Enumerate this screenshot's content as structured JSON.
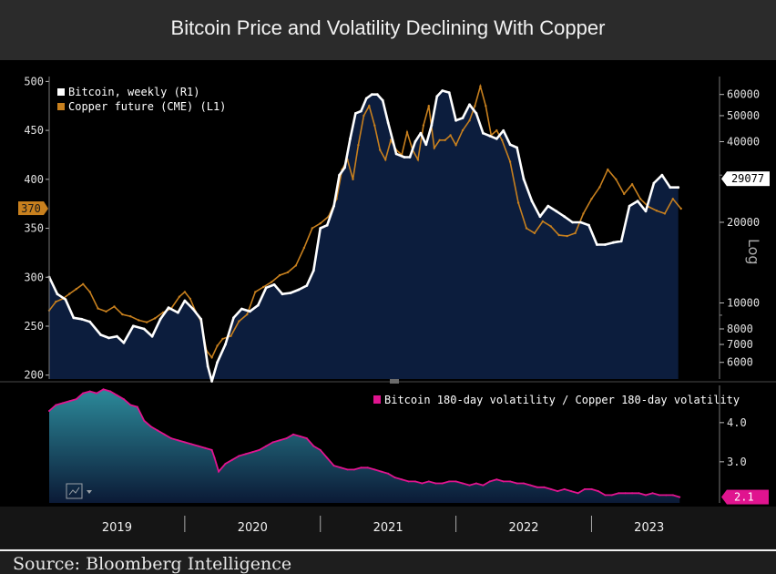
{
  "title": "Bitcoin Price and Volatility Declining With Copper",
  "source": "Source: Bloomberg Intelligence",
  "chart_data": [
    {
      "type": "line",
      "panel": "top",
      "x_axis": {
        "labels": [
          "2019",
          "2020",
          "2021",
          "2022",
          "2023"
        ],
        "range": [
          2019.0,
          2023.85
        ]
      },
      "left_axis": {
        "ticks": [
          500,
          450,
          400,
          350,
          300,
          250,
          200
        ],
        "range": [
          196,
          505
        ],
        "current_label": "370"
      },
      "right_axis": {
        "scale": "log",
        "ticks": [
          60000,
          50000,
          40000,
          20000,
          10000,
          8000,
          7000,
          6000
        ],
        "tick_labels": [
          "60000",
          "50000",
          "40000",
          "20000",
          "10000",
          "8000",
          "7000",
          "6000"
        ],
        "range": [
          5200,
          70000
        ],
        "unit_label": "Log",
        "current_label": "29077"
      },
      "series": [
        {
          "name": "Bitcoin, weekly (R1)",
          "axis": "right",
          "color": "#ffffff",
          "x": [
            2019.0,
            2019.06,
            2019.12,
            2019.18,
            2019.24,
            2019.3,
            2019.38,
            2019.44,
            2019.5,
            2019.55,
            2019.62,
            2019.7,
            2019.76,
            2019.82,
            2019.88,
            2019.95,
            2020.0,
            2020.06,
            2020.12,
            2020.17,
            2020.2,
            2020.24,
            2020.3,
            2020.36,
            2020.42,
            2020.48,
            2020.54,
            2020.6,
            2020.66,
            2020.72,
            2020.78,
            2020.84,
            2020.9,
            2020.95,
            2021.0,
            2021.05,
            2021.1,
            2021.14,
            2021.18,
            2021.22,
            2021.26,
            2021.3,
            2021.34,
            2021.38,
            2021.42,
            2021.46,
            2021.5,
            2021.56,
            2021.62,
            2021.66,
            2021.7,
            2021.74,
            2021.78,
            2021.82,
            2021.86,
            2021.9,
            2021.95,
            2022.0,
            2022.05,
            2022.1,
            2022.15,
            2022.2,
            2022.25,
            2022.3,
            2022.35,
            2022.4,
            2022.45,
            2022.5,
            2022.56,
            2022.62,
            2022.68,
            2022.74,
            2022.8,
            2022.86,
            2022.92,
            2022.98,
            2023.04,
            2023.1,
            2023.16,
            2023.22,
            2023.28,
            2023.34,
            2023.4,
            2023.46,
            2023.52,
            2023.58,
            2023.64
          ],
          "values": [
            12500,
            10800,
            10300,
            8800,
            8700,
            8500,
            7600,
            7400,
            7500,
            7100,
            8200,
            8000,
            7500,
            8700,
            9600,
            9200,
            10200,
            9500,
            8700,
            5800,
            5100,
            6000,
            7000,
            8800,
            9500,
            9300,
            9800,
            11400,
            11700,
            10800,
            10900,
            11200,
            11600,
            13200,
            19000,
            19500,
            23000,
            30000,
            32000,
            41000,
            51000,
            52000,
            58000,
            60000,
            60000,
            57000,
            47000,
            36000,
            35000,
            35000,
            40000,
            43000,
            39000,
            46000,
            59000,
            62000,
            61000,
            48000,
            49000,
            55000,
            51000,
            43000,
            42000,
            41000,
            44000,
            39000,
            38000,
            29000,
            24000,
            21000,
            23000,
            22000,
            21000,
            20000,
            20000,
            19500,
            16500,
            16500,
            16800,
            17000,
            23000,
            24000,
            22000,
            28000,
            30000,
            27000,
            27000
          ]
        },
        {
          "name": "Copper future (CME) (L1)",
          "axis": "left",
          "color": "#c8801e",
          "x": [
            2019.0,
            2019.05,
            2019.1,
            2019.15,
            2019.2,
            2019.25,
            2019.3,
            2019.36,
            2019.42,
            2019.48,
            2019.54,
            2019.6,
            2019.66,
            2019.72,
            2019.78,
            2019.84,
            2019.9,
            2019.96,
            2020.0,
            2020.04,
            2020.08,
            2020.12,
            2020.16,
            2020.2,
            2020.24,
            2020.28,
            2020.34,
            2020.4,
            2020.46,
            2020.52,
            2020.58,
            2020.64,
            2020.7,
            2020.76,
            2020.82,
            2020.88,
            2020.94,
            2021.0,
            2021.06,
            2021.12,
            2021.16,
            2021.2,
            2021.24,
            2021.28,
            2021.32,
            2021.36,
            2021.4,
            2021.44,
            2021.48,
            2021.52,
            2021.56,
            2021.6,
            2021.64,
            2021.68,
            2021.72,
            2021.76,
            2021.8,
            2021.84,
            2021.88,
            2021.92,
            2021.96,
            2022.0,
            2022.05,
            2022.1,
            2022.14,
            2022.18,
            2022.22,
            2022.26,
            2022.3,
            2022.34,
            2022.4,
            2022.46,
            2022.52,
            2022.58,
            2022.64,
            2022.7,
            2022.76,
            2022.82,
            2022.88,
            2022.94,
            2023.0,
            2023.06,
            2023.12,
            2023.18,
            2023.24,
            2023.3,
            2023.36,
            2023.42,
            2023.48,
            2023.54,
            2023.6,
            2023.66
          ],
          "values": [
            266,
            275,
            278,
            283,
            288,
            293,
            285,
            268,
            265,
            270,
            262,
            260,
            256,
            254,
            258,
            264,
            268,
            280,
            285,
            278,
            265,
            255,
            225,
            218,
            230,
            237,
            240,
            255,
            262,
            285,
            290,
            295,
            302,
            305,
            312,
            330,
            350,
            355,
            362,
            380,
            410,
            420,
            400,
            435,
            465,
            475,
            455,
            430,
            420,
            440,
            430,
            425,
            448,
            430,
            420,
            455,
            475,
            432,
            440,
            440,
            445,
            435,
            450,
            460,
            475,
            495,
            475,
            445,
            450,
            440,
            418,
            376,
            350,
            345,
            357,
            352,
            343,
            342,
            345,
            365,
            380,
            392,
            410,
            400,
            385,
            395,
            380,
            372,
            368,
            365,
            380,
            370
          ]
        }
      ]
    },
    {
      "type": "area",
      "panel": "bottom",
      "legend": "Bitcoin 180-day volatility / Copper 180-day volatility",
      "right_axis": {
        "ticks": [
          4.0,
          3.0
        ],
        "tick_labels": [
          "4.0",
          "3.0"
        ],
        "range": [
          1.95,
          4.95
        ],
        "current_label": "2.1"
      },
      "series": [
        {
          "name": "Bitcoin 180-day volatility / Copper 180-day volatility",
          "color": "#e0148f",
          "x": [
            2019.0,
            2019.05,
            2019.1,
            2019.15,
            2019.2,
            2019.25,
            2019.3,
            2019.35,
            2019.4,
            2019.45,
            2019.5,
            2019.55,
            2019.6,
            2019.65,
            2019.7,
            2019.75,
            2019.8,
            2019.85,
            2019.9,
            2019.95,
            2020.0,
            2020.05,
            2020.1,
            2020.15,
            2020.2,
            2020.22,
            2020.25,
            2020.3,
            2020.35,
            2020.4,
            2020.45,
            2020.5,
            2020.55,
            2020.6,
            2020.65,
            2020.7,
            2020.75,
            2020.8,
            2020.85,
            2020.9,
            2020.95,
            2021.0,
            2021.05,
            2021.1,
            2021.15,
            2021.2,
            2021.25,
            2021.3,
            2021.35,
            2021.4,
            2021.45,
            2021.5,
            2021.55,
            2021.6,
            2021.65,
            2021.7,
            2021.75,
            2021.8,
            2021.85,
            2021.9,
            2021.95,
            2022.0,
            2022.05,
            2022.1,
            2022.15,
            2022.2,
            2022.25,
            2022.3,
            2022.35,
            2022.4,
            2022.45,
            2022.5,
            2022.55,
            2022.6,
            2022.65,
            2022.7,
            2022.75,
            2022.8,
            2022.85,
            2022.9,
            2022.95,
            2023.0,
            2023.05,
            2023.1,
            2023.15,
            2023.2,
            2023.25,
            2023.3,
            2023.35,
            2023.4,
            2023.45,
            2023.5,
            2023.55,
            2023.6,
            2023.65
          ],
          "values": [
            4.3,
            4.45,
            4.5,
            4.55,
            4.6,
            4.75,
            4.8,
            4.75,
            4.85,
            4.8,
            4.7,
            4.6,
            4.45,
            4.4,
            4.05,
            3.9,
            3.8,
            3.7,
            3.6,
            3.55,
            3.5,
            3.45,
            3.4,
            3.35,
            3.3,
            3.1,
            2.75,
            2.95,
            3.05,
            3.15,
            3.2,
            3.25,
            3.3,
            3.4,
            3.5,
            3.55,
            3.6,
            3.7,
            3.65,
            3.6,
            3.4,
            3.3,
            3.1,
            2.9,
            2.85,
            2.8,
            2.8,
            2.85,
            2.85,
            2.8,
            2.75,
            2.7,
            2.6,
            2.55,
            2.5,
            2.5,
            2.45,
            2.5,
            2.45,
            2.45,
            2.5,
            2.5,
            2.45,
            2.4,
            2.45,
            2.4,
            2.5,
            2.55,
            2.5,
            2.5,
            2.45,
            2.45,
            2.4,
            2.35,
            2.35,
            2.3,
            2.25,
            2.3,
            2.25,
            2.2,
            2.3,
            2.3,
            2.25,
            2.15,
            2.15,
            2.2,
            2.2,
            2.2,
            2.2,
            2.15,
            2.2,
            2.15,
            2.15,
            2.15,
            2.1
          ]
        }
      ]
    }
  ]
}
